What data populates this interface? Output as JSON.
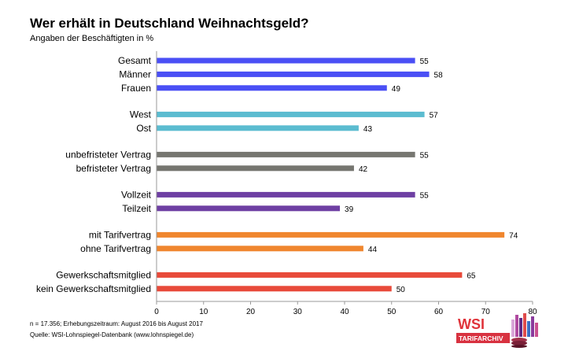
{
  "header": {
    "title": "Wer erhält in Deutschland Weihnachtsgeld?",
    "subtitle": "Angaben der Beschäftigten in %"
  },
  "footer": {
    "note": "n = 17.356; Erhebungszeitraum: August 2016 bis August 2017",
    "source": "Quelle: WSI-Lohnspiegel-Datenbank  (www.lohnspiegel.de)"
  },
  "logo": {
    "line1": "WSI",
    "line2": "TARIFARCHIV",
    "icon": "wsi-tarifarchiv-logo"
  },
  "chart_data": {
    "type": "bar",
    "orientation": "horizontal",
    "title": "Wer erhält in Deutschland Weihnachtsgeld?",
    "subtitle": "Angaben der Beschäftigten in %",
    "xlim": [
      0,
      80
    ],
    "xticks": [
      0,
      10,
      20,
      30,
      40,
      50,
      60,
      70,
      80
    ],
    "grid": false,
    "legend": "none",
    "groups": [
      {
        "color": "#4a4ff5",
        "bars": [
          {
            "label": "Gesamt",
            "value": 55
          },
          {
            "label": "Männer",
            "value": 58
          },
          {
            "label": "Frauen",
            "value": 49
          }
        ]
      },
      {
        "color": "#5bbcd0",
        "bars": [
          {
            "label": "West",
            "value": 57
          },
          {
            "label": "Ost",
            "value": 43
          }
        ]
      },
      {
        "color": "#767670",
        "bars": [
          {
            "label": "unbefristeter Vertrag",
            "value": 55
          },
          {
            "label": "befristeter Vertrag",
            "value": 42
          }
        ]
      },
      {
        "color": "#6e3fa3",
        "bars": [
          {
            "label": "Vollzeit",
            "value": 55
          },
          {
            "label": "Teilzeit",
            "value": 39
          }
        ]
      },
      {
        "color": "#f0862e",
        "bars": [
          {
            "label": "mit Tarifvertrag",
            "value": 74
          },
          {
            "label": "ohne Tarifvertrag",
            "value": 44
          }
        ]
      },
      {
        "color": "#e84a3a",
        "bars": [
          {
            "label": "Gewerkschaftsmitglied",
            "value": 65
          },
          {
            "label": "kein Gewerkschaftsmitglied",
            "value": 50
          }
        ]
      }
    ]
  }
}
